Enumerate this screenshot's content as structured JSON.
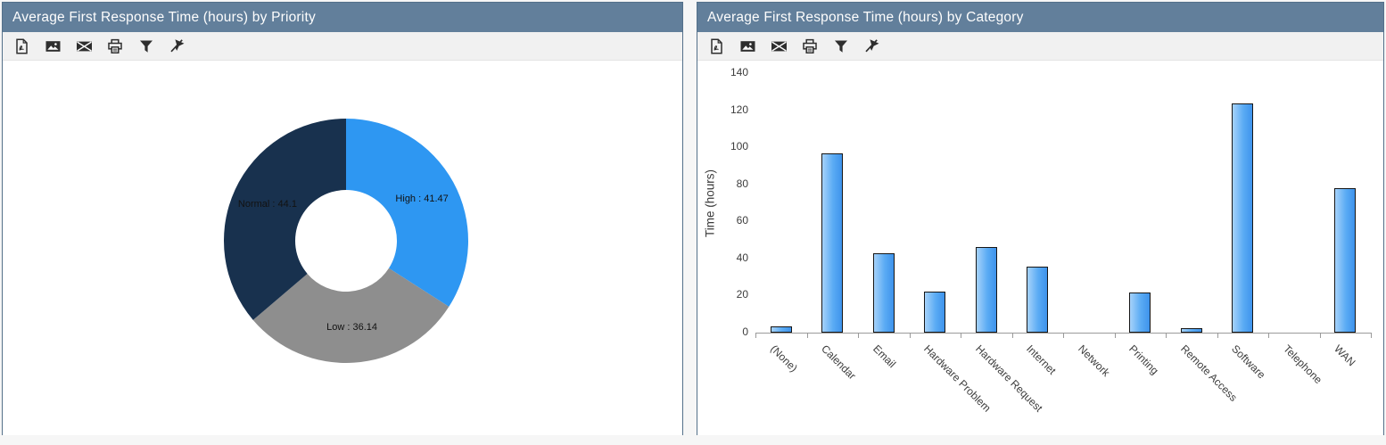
{
  "colors": {
    "header_bg": "#627f9b",
    "panel_border": "#54708a",
    "toolbar_bg": "#f1f1f1",
    "axis": "#9a9a9a",
    "bar_fill_light": "#a6d2fa",
    "bar_fill_dark": "#3e93ec",
    "bar_border": "#161616"
  },
  "toolbar": {
    "buttons": [
      "export-pdf",
      "export-image",
      "email",
      "print",
      "filter",
      "clear-filter"
    ]
  },
  "panels": {
    "priority": {
      "title": "Average First Response Time (hours) by Priority",
      "chart_data": {
        "type": "pie",
        "subtype": "donut",
        "title": "Average First Response Time (hours) by Priority",
        "labels": [
          "High",
          "Low",
          "Normal"
        ],
        "values": [
          41.47,
          36.14,
          44.1
        ],
        "colors": [
          "#2e97f2",
          "#8e8e8e",
          "#18314e"
        ],
        "label_separator": " : ",
        "start_angle_deg": 0,
        "direction": "clockwise",
        "legend_position": "none"
      }
    },
    "category": {
      "title": "Average First Response Time (hours) by Category",
      "chart_data": {
        "type": "bar",
        "categories": [
          "(None)",
          "Calendar",
          "Email",
          "Hardware Problem",
          "Hardware Request",
          "Internet",
          "Network",
          "Printing",
          "Remote Access",
          "Software",
          "Telephone",
          "WAN"
        ],
        "values": [
          3.4,
          96.5,
          43,
          22,
          46.2,
          35.8,
          0,
          21.5,
          2.3,
          123.5,
          0,
          78
        ],
        "ylabel": "Time (hours)",
        "xlabel": "",
        "ylim": [
          0,
          140
        ],
        "yticks": [
          0,
          20,
          40,
          60,
          80,
          100,
          120,
          140
        ],
        "grid": false,
        "legend_position": "none",
        "xlabel_rotation_deg": 45
      }
    }
  }
}
